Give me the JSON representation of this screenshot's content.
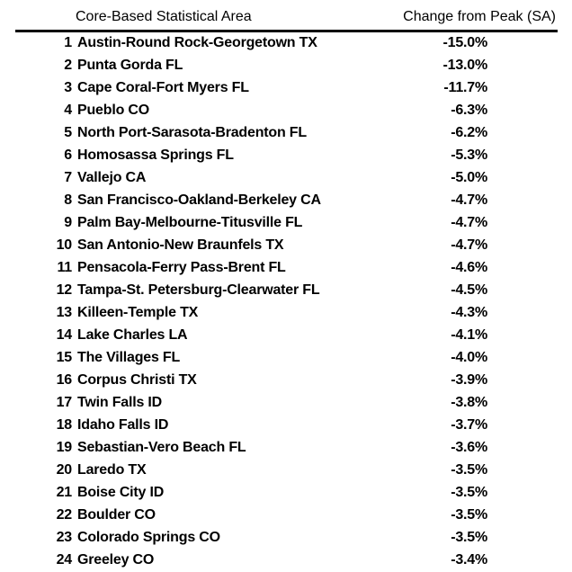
{
  "table": {
    "columns": {
      "area": "Core-Based Statistical Area",
      "change": "Change from Peak (SA)"
    },
    "rows": [
      {
        "rank": "1",
        "area": "Austin-Round Rock-Georgetown TX",
        "change": "-15.0%"
      },
      {
        "rank": "2",
        "area": "Punta Gorda FL",
        "change": "-13.0%"
      },
      {
        "rank": "3",
        "area": "Cape Coral-Fort Myers FL",
        "change": "-11.7%"
      },
      {
        "rank": "4",
        "area": "Pueblo CO",
        "change": "-6.3%"
      },
      {
        "rank": "5",
        "area": "North Port-Sarasota-Bradenton FL",
        "change": "-6.2%"
      },
      {
        "rank": "6",
        "area": "Homosassa Springs FL",
        "change": "-5.3%"
      },
      {
        "rank": "7",
        "area": "Vallejo CA",
        "change": "-5.0%"
      },
      {
        "rank": "8",
        "area": "San Francisco-Oakland-Berkeley CA",
        "change": "-4.7%"
      },
      {
        "rank": "9",
        "area": "Palm Bay-Melbourne-Titusville FL",
        "change": "-4.7%"
      },
      {
        "rank": "10",
        "area": "San Antonio-New Braunfels TX",
        "change": "-4.7%"
      },
      {
        "rank": "11",
        "area": "Pensacola-Ferry Pass-Brent FL",
        "change": "-4.6%"
      },
      {
        "rank": "12",
        "area": "Tampa-St. Petersburg-Clearwater FL",
        "change": "-4.5%"
      },
      {
        "rank": "13",
        "area": "Killeen-Temple TX",
        "change": "-4.3%"
      },
      {
        "rank": "14",
        "area": "Lake Charles LA",
        "change": "-4.1%"
      },
      {
        "rank": "15",
        "area": "The Villages FL",
        "change": "-4.0%"
      },
      {
        "rank": "16",
        "area": "Corpus Christi TX",
        "change": "-3.9%"
      },
      {
        "rank": "17",
        "area": "Twin Falls ID",
        "change": "-3.8%"
      },
      {
        "rank": "18",
        "area": "Idaho Falls ID",
        "change": "-3.7%"
      },
      {
        "rank": "19",
        "area": "Sebastian-Vero Beach FL",
        "change": "-3.6%"
      },
      {
        "rank": "20",
        "area": "Laredo TX",
        "change": "-3.5%"
      },
      {
        "rank": "21",
        "area": "Boise City ID",
        "change": "-3.5%"
      },
      {
        "rank": "22",
        "area": "Boulder CO",
        "change": "-3.5%"
      },
      {
        "rank": "23",
        "area": "Colorado Springs CO",
        "change": "-3.5%"
      },
      {
        "rank": "24",
        "area": "Greeley CO",
        "change": "-3.4%"
      }
    ]
  }
}
